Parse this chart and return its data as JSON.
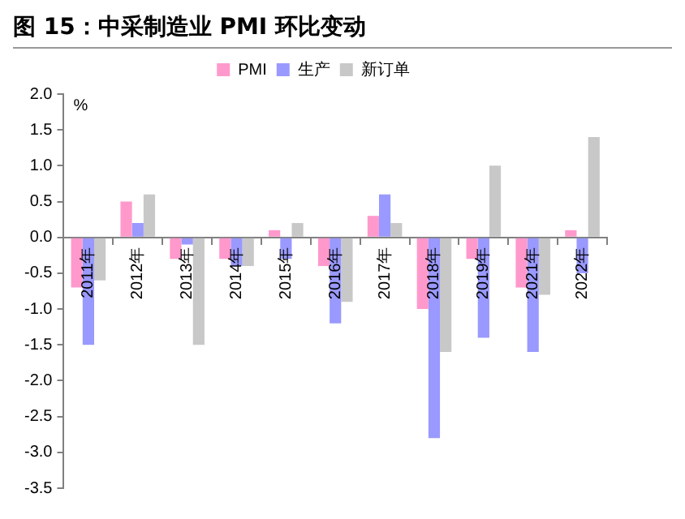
{
  "chart_data": {
    "type": "bar",
    "title": "图 15：中采制造业 PMI 环比变动",
    "ylabel": "%",
    "categories": [
      "2011年",
      "2012年",
      "2013年",
      "2014年",
      "2015年",
      "2016年",
      "2017年",
      "2018年",
      "2019年",
      "2021年",
      "2022年"
    ],
    "series": [
      {
        "name": "PMI",
        "color": "#ff99cc",
        "values": [
          -0.7,
          0.5,
          -0.3,
          -0.3,
          0.1,
          -0.4,
          0.3,
          -1.0,
          -0.3,
          -0.7,
          0.1
        ]
      },
      {
        "name": "生产",
        "color": "#9999ff",
        "values": [
          -1.5,
          0.2,
          -0.1,
          -0.4,
          -0.3,
          -1.2,
          0.6,
          -2.8,
          -1.4,
          -1.6,
          -0.5
        ]
      },
      {
        "name": "新订单",
        "color": "#c8c8c8",
        "values": [
          -0.6,
          0.6,
          -1.5,
          -0.4,
          0.2,
          -0.9,
          0.2,
          -1.6,
          1.0,
          -0.8,
          1.4
        ]
      }
    ],
    "ylim": [
      -3.5,
      2.0
    ],
    "yticks": [
      {
        "value": -3.5,
        "label": "-3.5"
      },
      {
        "value": -3.0,
        "label": "-3.0"
      },
      {
        "value": -2.5,
        "label": "-2.5"
      },
      {
        "value": -2.0,
        "label": "-2.0"
      },
      {
        "value": -1.5,
        "label": "-1.5"
      },
      {
        "value": -1.0,
        "label": "-1.0"
      },
      {
        "value": -0.5,
        "label": "-0.5"
      },
      {
        "value": 0,
        "label": "0.0"
      },
      {
        "value": 0.5,
        "label": "0.5"
      },
      {
        "value": 1.0,
        "label": "1.0"
      },
      {
        "value": 1.5,
        "label": "1.5"
      },
      {
        "value": 2.0,
        "label": "2.0"
      }
    ],
    "grid": false,
    "legend": "top"
  }
}
